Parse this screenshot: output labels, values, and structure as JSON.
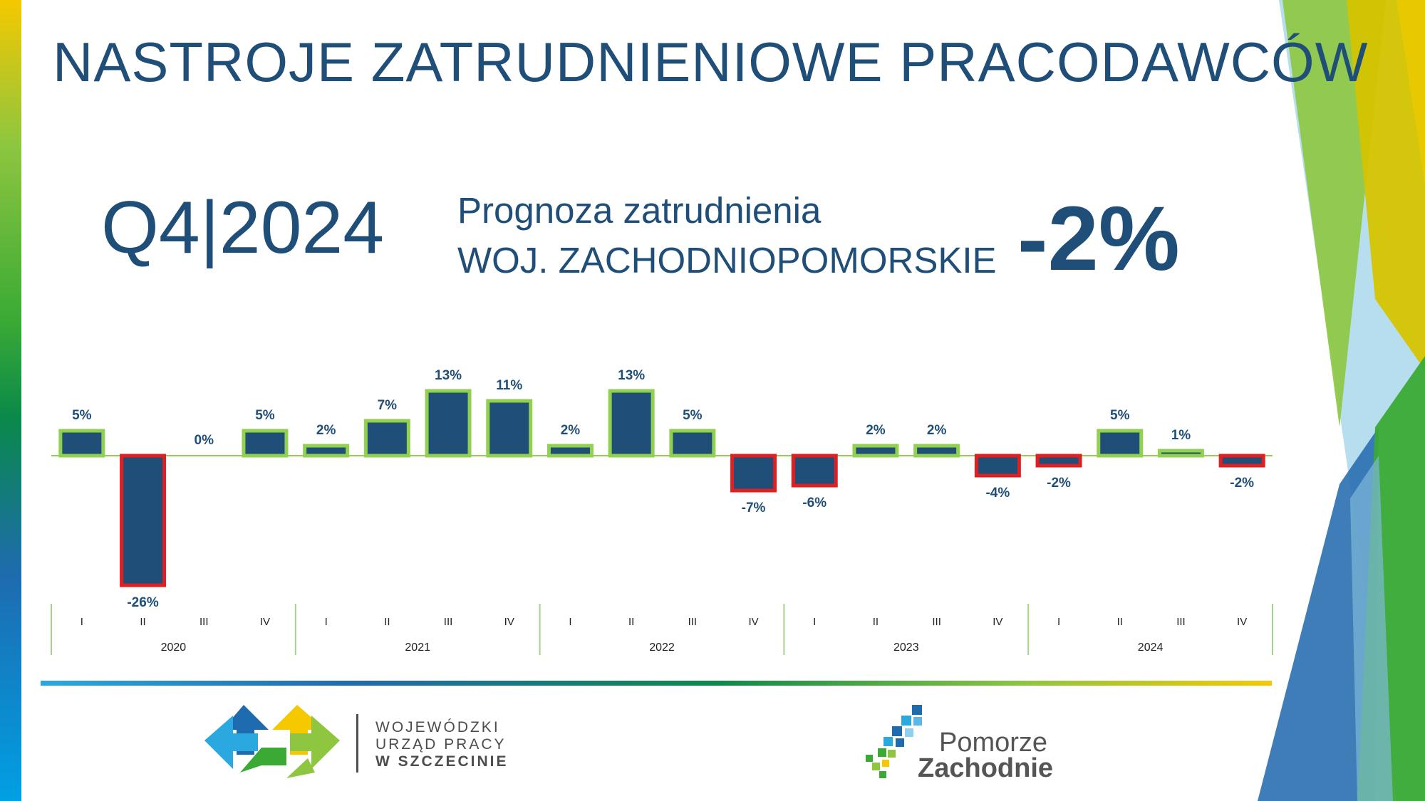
{
  "header": {
    "title": "NASTROJE ZATRUDNIENIOWE PRACODAWCÓW",
    "quarter": "Q4|2024",
    "subtitle_line1": "Prognoza zatrudnienia",
    "subtitle_line2": "WOJ. ZACHODNIOPOMORSKIE",
    "headline_value": "-2%"
  },
  "chart_data": {
    "type": "bar",
    "title": "",
    "xlabel": "",
    "ylabel": "",
    "ylim": [
      -26,
      13
    ],
    "grid": false,
    "legend": "none",
    "quarters": [
      "I",
      "II",
      "III",
      "IV",
      "I",
      "II",
      "III",
      "IV",
      "I",
      "II",
      "III",
      "IV",
      "I",
      "II",
      "III",
      "IV",
      "I",
      "II",
      "III",
      "IV"
    ],
    "years": [
      "2020",
      "2021",
      "2022",
      "2023",
      "2024"
    ],
    "values": [
      5,
      -26,
      0,
      5,
      2,
      7,
      13,
      11,
      2,
      13,
      5,
      -7,
      -6,
      2,
      2,
      -4,
      -2,
      5,
      1,
      -2
    ],
    "labels": [
      "5%",
      "-26%",
      "0%",
      "5%",
      "2%",
      "7%",
      "13%",
      "11%",
      "2%",
      "13%",
      "5%",
      "-7%",
      "-6%",
      "2%",
      "2%",
      "-4%",
      "-2%",
      "5%",
      "1%",
      "-2%"
    ],
    "colors": {
      "bar_fill": "#1f4e79",
      "positive_outline": "#92d050",
      "negative_outline": "#e02020",
      "zero_line": "#92d050"
    }
  },
  "footer": {
    "wup_line1": "WOJEWÓDZKI",
    "wup_line2": "URZĄD PRACY",
    "wup_line3": "W  SZCZECINIE",
    "pz_line1": "Pomorze",
    "pz_line2": "Zachodnie"
  }
}
